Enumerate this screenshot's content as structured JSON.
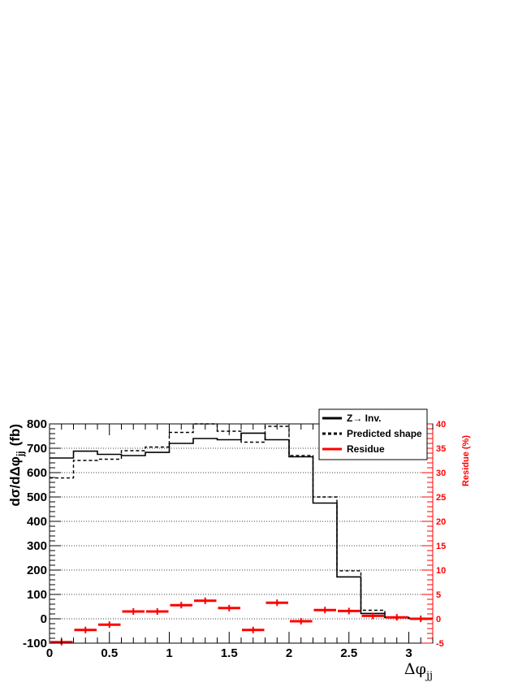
{
  "chart_data": {
    "type": "line",
    "x_bin_edges": [
      0,
      0.2,
      0.4,
      0.6,
      0.8,
      1.0,
      1.2,
      1.4,
      1.6,
      1.8,
      2.0,
      2.2,
      2.4,
      2.6,
      2.8,
      3.0,
      3.2
    ],
    "xlim": [
      0,
      3.2
    ],
    "ylim": [
      -100,
      800
    ],
    "y2lim": [
      -5,
      40
    ],
    "x_ticks": [
      "0",
      "0.5",
      "1",
      "1.5",
      "2",
      "2.5",
      "3"
    ],
    "y_ticks": [
      "-100",
      "0",
      "100",
      "200",
      "300",
      "400",
      "500",
      "600",
      "700",
      "800"
    ],
    "y2_ticks": [
      "-5",
      "0",
      "5",
      "10",
      "15",
      "20",
      "25",
      "30",
      "35",
      "40"
    ],
    "xlabel": "Δφ",
    "xlabel_sub": "jj",
    "ylabel": "dσ/dΔφ",
    "ylabel_sub": "jj",
    "ylabel_unit": "(fb)",
    "y2label": "Residue (%)",
    "grid": "horizontal dotted at left-axis ticks",
    "legend_position": "top-right",
    "series": [
      {
        "name": "Z→ Inv.",
        "style": "solid",
        "color": "#000000",
        "axis": "left",
        "values": [
          660,
          688,
          675,
          670,
          683,
          720,
          740,
          735,
          762,
          735,
          665,
          475,
          172,
          22,
          5,
          2
        ]
      },
      {
        "name": "Predicted shape",
        "style": "dashed",
        "color": "#000000",
        "axis": "left",
        "values": [
          578,
          650,
          655,
          690,
          705,
          765,
          800,
          770,
          725,
          790,
          670,
          500,
          197,
          35,
          6,
          2
        ]
      },
      {
        "name": "Residue",
        "style": "markers",
        "color": "#ff0000",
        "axis": "right",
        "values": [
          -4.8,
          -2.3,
          -1.2,
          1.5,
          1.5,
          2.8,
          3.7,
          2.2,
          -2.3,
          3.3,
          -0.5,
          1.8,
          1.6,
          0.6,
          0.3,
          0.0
        ]
      }
    ]
  }
}
